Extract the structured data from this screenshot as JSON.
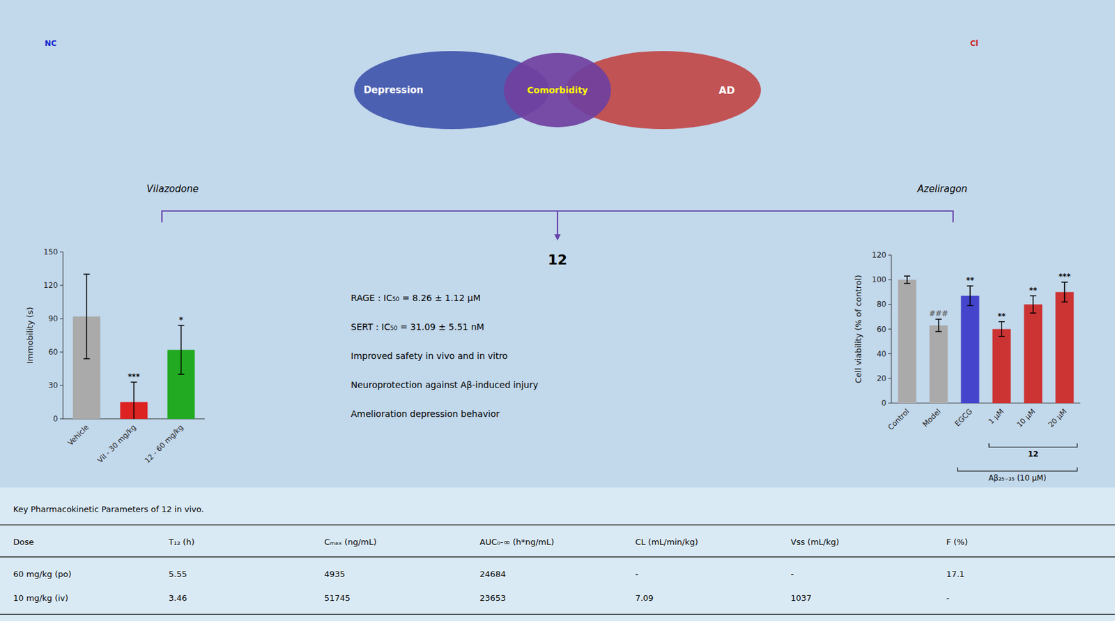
{
  "chart_data": [
    {
      "type": "bar",
      "categories": [
        "Vehicle",
        "Vil - 30 mg/kg",
        "12 - 60 mg/kg"
      ],
      "values": [
        92,
        15,
        62
      ],
      "errors": [
        38,
        18,
        22
      ],
      "colors": [
        "#aaaaaa",
        "#dd2222",
        "#22aa22"
      ],
      "ylabel": "Immobility (s)",
      "ylim": [
        0,
        150
      ],
      "yticks": [
        0,
        30,
        60,
        90,
        120,
        150
      ],
      "significance": [
        null,
        "***",
        "*"
      ],
      "significance_colors": [
        "black",
        "black",
        "black"
      ]
    },
    {
      "type": "bar",
      "categories": [
        "Control",
        "Model",
        "EGCG",
        "1 μM",
        "10 μM",
        "20 μM"
      ],
      "values": [
        100,
        63,
        87,
        60,
        80,
        90
      ],
      "errors": [
        3,
        5,
        8,
        6,
        7,
        8
      ],
      "colors": [
        "#aaaaaa",
        "#aaaaaa",
        "#4444cc",
        "#cc3333",
        "#cc3333",
        "#cc3333"
      ],
      "ylabel": "Cell viability (% of control)",
      "ylim": [
        0,
        120
      ],
      "yticks": [
        0,
        20,
        40,
        60,
        80,
        100,
        120
      ],
      "significance": [
        null,
        "###",
        "**",
        "**",
        "**",
        "***"
      ],
      "significance_colors": [
        "black",
        "#666666",
        "black",
        "black",
        "black",
        "black"
      ],
      "annotations": [
        {
          "text": "12",
          "from": "1 μM",
          "to": "20 μM"
        },
        {
          "text": "Aβ₂₅₋₃₅ (10 μM)",
          "from": "EGCG",
          "to": "20 μM"
        }
      ]
    },
    {
      "type": "venn",
      "sets": [
        {
          "name": "Depression",
          "color": "#3a4fa8"
        },
        {
          "name": "AD",
          "color": "#c04040"
        }
      ],
      "overlap": {
        "name": "Comorbidity",
        "color": "#7040a0"
      },
      "drugs": [
        "Vilazodone",
        "Azeliragon"
      ],
      "compound": "12",
      "bracket_color": "#6644aa",
      "notes": [
        "RAGE : IC₅₀ = 8.26 ± 1.12 μM",
        "SERT : IC₅₀ = 31.09 ± 5.51 nM",
        "Improved safety in vivo and in vitro",
        "Neuroprotection against Aβ-induced injury",
        "Amelioration depression behavior"
      ],
      "structure_labels": [
        {
          "text": "NC",
          "color": "#1122cc"
        },
        {
          "text": "Cl",
          "color": "#cc2222"
        }
      ]
    },
    {
      "type": "table",
      "title": "Key Pharmacokinetic Parameters of 12 in vivo.",
      "columns": [
        "Dose",
        "T₁₂ (h)",
        "Cₘₐₓ (ng/mL)",
        "AUC₀-∞ (h*ng/mL)",
        "CL (mL/min/kg)",
        "Vss (mL/kg)",
        "F (%)"
      ],
      "rows": [
        [
          "60 mg/kg (po)",
          "5.55",
          "4935",
          "24684",
          "-",
          "-",
          "17.1"
        ],
        [
          "10 mg/kg (iv)",
          "3.46",
          "51745",
          "23653",
          "7.09",
          "1037",
          "-"
        ]
      ],
      "color": "#daeaf5",
      "line_color": "#222222"
    }
  ],
  "background": "#c2d8eb"
}
